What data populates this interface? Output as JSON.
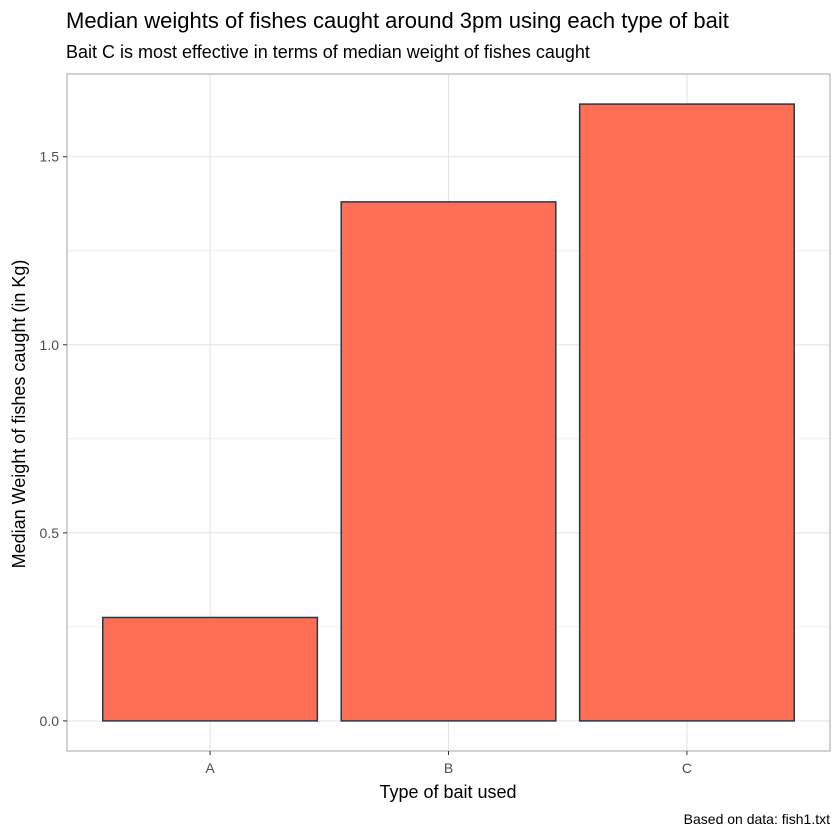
{
  "chart_data": {
    "type": "bar",
    "title": "Median weights of fishes caught around 3pm using each type of bait",
    "subtitle": "Bait C is most effective in terms of median weight of fishes caught",
    "xlabel": "Type of bait used",
    "ylabel": "Median Weight of fishes caught (in Kg)",
    "caption": "Based on data: fish1.txt",
    "categories": [
      "A",
      "B",
      "C"
    ],
    "values": [
      0.275,
      1.38,
      1.64
    ],
    "ylim": [
      -0.08,
      1.72
    ],
    "yticks": [
      0.0,
      0.5,
      1.0,
      1.5
    ],
    "ytick_labels": [
      "0.0",
      "0.5",
      "1.0",
      "1.5"
    ],
    "grid": true,
    "colors": {
      "bar_fill": "#FF6F55",
      "bar_stroke": "#1F3B4D",
      "grid": "#E5E5E5",
      "panel_border": "#B3B3B3",
      "tick_text": "#4D4D4D"
    }
  }
}
